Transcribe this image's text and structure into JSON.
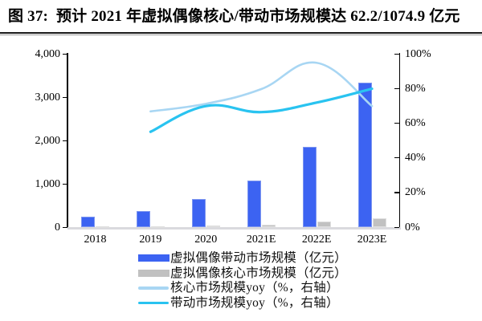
{
  "figure": {
    "title": "图 37:  预计 2021 年虚拟偶像核心/带动市场规模达 62.2/1074.9 亿元"
  },
  "chart_data": {
    "type": "combo",
    "title": "预计 2021 年虚拟偶像核心/带动市场规模达 62.2/1074.9 亿元",
    "categories": [
      "2018",
      "2019",
      "2020",
      "2021E",
      "2022E",
      "2023E"
    ],
    "series": [
      {
        "name": "虚拟偶像带动市场规模（亿元）",
        "type": "bar",
        "axis": "left",
        "color": "#3c63f2",
        "edge_color": "#7d96f0",
        "values": [
          245,
          380,
          645.6,
          1074.9,
          1850,
          3334.7
        ]
      },
      {
        "name": "虚拟偶像核心市场规模（亿元）",
        "type": "bar",
        "axis": "left",
        "color": "#c1c1c1",
        "edge_color": "#dfdfdf",
        "values": [
          12,
          20,
          34.6,
          62.2,
          121,
          206
        ]
      },
      {
        "name": "核心市场规模yoy（%，右轴）",
        "type": "line",
        "axis": "right",
        "color": "#a8d6f3",
        "values": [
          null,
          66.9,
          71.3,
          79.8,
          95.0,
          70.0
        ]
      },
      {
        "name": "带动市场规模yoy（%，右轴）",
        "type": "line",
        "axis": "right",
        "color": "#29c3f0",
        "values": [
          null,
          55.1,
          70.0,
          66.5,
          72.0,
          80.0
        ]
      }
    ],
    "axes": {
      "left": {
        "min": 0,
        "max": 4000,
        "ticks": [
          "0",
          "1,000",
          "2,000",
          "3,000",
          "4,000"
        ]
      },
      "right": {
        "min": 0,
        "max": 100,
        "ticks": [
          "0%",
          "20%",
          "40%",
          "60%",
          "80%",
          "100%"
        ]
      }
    },
    "grid": false,
    "legend_position": "bottom-left"
  },
  "style": {
    "baseline_color": "#dadade",
    "axis_color": "#000000"
  }
}
